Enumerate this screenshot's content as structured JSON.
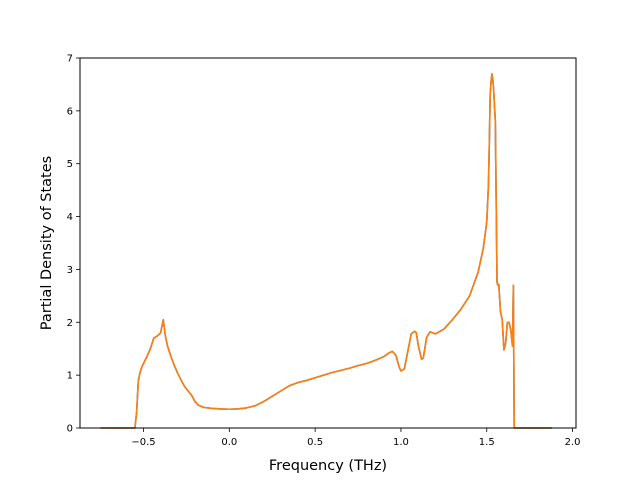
{
  "chart_data": {
    "type": "line",
    "title": "",
    "xlabel": "Frequency (THz)",
    "ylabel": "Partial Density of States",
    "xlim": [
      -0.87,
      2.02
    ],
    "ylim": [
      0,
      7
    ],
    "xticks": [
      -0.5,
      0.0,
      0.5,
      1.0,
      1.5,
      2.0
    ],
    "xtick_labels": [
      "−0.5",
      "0.0",
      "0.5",
      "1.0",
      "1.5",
      "2.0"
    ],
    "yticks": [
      0,
      1,
      2,
      3,
      4,
      5,
      6,
      7
    ],
    "ytick_labels": [
      "0",
      "1",
      "2",
      "3",
      "4",
      "5",
      "6",
      "7"
    ],
    "grid": false,
    "legend": "none",
    "series": [
      {
        "color": "#1f77b4",
        "x": [
          -0.75,
          -0.55,
          -0.54,
          -0.53,
          -0.52,
          -0.51,
          -0.5,
          -0.48,
          -0.46,
          -0.44,
          -0.43,
          -0.42,
          -0.4,
          -0.385,
          -0.375,
          -0.37,
          -0.36,
          -0.34,
          -0.32,
          -0.3,
          -0.28,
          -0.26,
          -0.24,
          -0.22,
          -0.2,
          -0.18,
          -0.15,
          -0.1,
          -0.05,
          0.0,
          0.05,
          0.1,
          0.15,
          0.2,
          0.25,
          0.3,
          0.35,
          0.4,
          0.45,
          0.5,
          0.55,
          0.6,
          0.65,
          0.7,
          0.75,
          0.8,
          0.85,
          0.9,
          0.93,
          0.95,
          0.97,
          0.99,
          1.0,
          1.02,
          1.04,
          1.06,
          1.08,
          1.09,
          1.1,
          1.12,
          1.13,
          1.15,
          1.17,
          1.2,
          1.25,
          1.3,
          1.35,
          1.4,
          1.45,
          1.48,
          1.5,
          1.51,
          1.515,
          1.52,
          1.525,
          1.53,
          1.535,
          1.54,
          1.55,
          1.56,
          1.565,
          1.57,
          1.58,
          1.59,
          1.6,
          1.61,
          1.62,
          1.63,
          1.64,
          1.65,
          1.655,
          1.66,
          1.665,
          1.67,
          1.88
        ],
        "y": [
          0.0,
          0.0,
          0.3,
          0.9,
          1.05,
          1.15,
          1.22,
          1.35,
          1.5,
          1.7,
          1.72,
          1.74,
          1.8,
          2.05,
          1.8,
          1.7,
          1.55,
          1.35,
          1.18,
          1.03,
          0.9,
          0.78,
          0.7,
          0.62,
          0.5,
          0.43,
          0.39,
          0.37,
          0.36,
          0.355,
          0.36,
          0.38,
          0.42,
          0.5,
          0.6,
          0.7,
          0.8,
          0.86,
          0.9,
          0.95,
          1.0,
          1.05,
          1.09,
          1.13,
          1.18,
          1.22,
          1.28,
          1.35,
          1.42,
          1.45,
          1.38,
          1.15,
          1.08,
          1.12,
          1.45,
          1.78,
          1.83,
          1.8,
          1.58,
          1.3,
          1.32,
          1.72,
          1.82,
          1.78,
          1.87,
          2.05,
          2.25,
          2.5,
          2.95,
          3.4,
          3.9,
          4.6,
          5.4,
          6.3,
          6.55,
          6.7,
          6.6,
          6.4,
          5.8,
          2.75,
          2.7,
          2.72,
          2.2,
          2.05,
          1.48,
          1.6,
          2.0,
          2.0,
          1.85,
          1.55,
          2.7,
          0.0,
          0.0,
          0.0,
          0.0
        ]
      },
      {
        "color": "#ff7f0e",
        "x": [
          -0.75,
          -0.55,
          -0.54,
          -0.53,
          -0.52,
          -0.51,
          -0.5,
          -0.48,
          -0.46,
          -0.44,
          -0.43,
          -0.42,
          -0.4,
          -0.385,
          -0.375,
          -0.37,
          -0.36,
          -0.34,
          -0.32,
          -0.3,
          -0.28,
          -0.26,
          -0.24,
          -0.22,
          -0.2,
          -0.18,
          -0.15,
          -0.1,
          -0.05,
          0.0,
          0.05,
          0.1,
          0.15,
          0.2,
          0.25,
          0.3,
          0.35,
          0.4,
          0.45,
          0.5,
          0.55,
          0.6,
          0.65,
          0.7,
          0.75,
          0.8,
          0.85,
          0.9,
          0.93,
          0.95,
          0.97,
          0.99,
          1.0,
          1.02,
          1.04,
          1.06,
          1.08,
          1.09,
          1.1,
          1.12,
          1.13,
          1.15,
          1.17,
          1.2,
          1.25,
          1.3,
          1.35,
          1.4,
          1.45,
          1.48,
          1.5,
          1.51,
          1.515,
          1.52,
          1.525,
          1.53,
          1.535,
          1.54,
          1.55,
          1.56,
          1.565,
          1.57,
          1.58,
          1.59,
          1.6,
          1.61,
          1.62,
          1.63,
          1.64,
          1.65,
          1.655,
          1.66,
          1.665,
          1.67,
          1.88
        ],
        "y": [
          0.0,
          0.0,
          0.3,
          0.9,
          1.05,
          1.15,
          1.22,
          1.35,
          1.5,
          1.7,
          1.72,
          1.74,
          1.8,
          2.05,
          1.8,
          1.7,
          1.55,
          1.35,
          1.18,
          1.03,
          0.9,
          0.78,
          0.7,
          0.62,
          0.5,
          0.43,
          0.39,
          0.37,
          0.36,
          0.355,
          0.36,
          0.38,
          0.42,
          0.5,
          0.6,
          0.7,
          0.8,
          0.86,
          0.9,
          0.95,
          1.0,
          1.05,
          1.09,
          1.13,
          1.18,
          1.22,
          1.28,
          1.35,
          1.42,
          1.45,
          1.38,
          1.15,
          1.08,
          1.12,
          1.45,
          1.78,
          1.83,
          1.8,
          1.58,
          1.3,
          1.32,
          1.72,
          1.82,
          1.78,
          1.87,
          2.05,
          2.25,
          2.5,
          2.95,
          3.4,
          3.9,
          4.6,
          5.4,
          6.3,
          6.55,
          6.7,
          6.6,
          6.4,
          5.8,
          2.75,
          2.7,
          2.72,
          2.2,
          2.05,
          1.48,
          1.6,
          2.0,
          2.0,
          1.85,
          1.55,
          2.7,
          0.0,
          0.0,
          0.0,
          0.0
        ]
      }
    ]
  }
}
